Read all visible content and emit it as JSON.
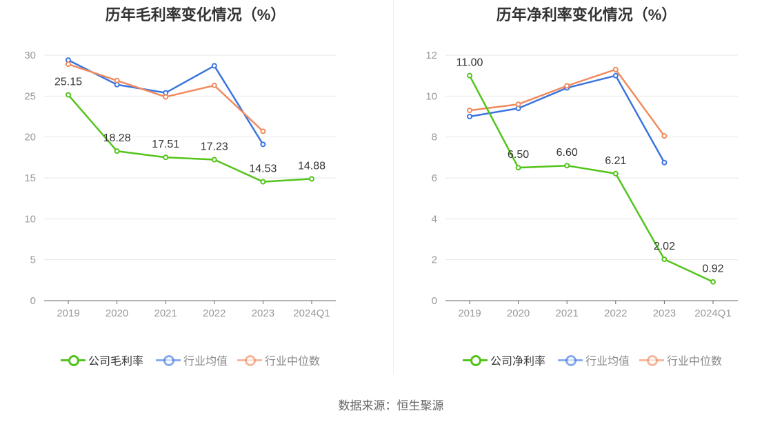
{
  "source": "数据来源：恒生聚源",
  "chart_data": [
    {
      "type": "line",
      "title": "历年毛利率变化情况（%）",
      "categories": [
        "2019",
        "2020",
        "2021",
        "2022",
        "2023",
        "2024Q1"
      ],
      "ylim": [
        0,
        30
      ],
      "yticks": [
        0,
        5,
        10,
        15,
        20,
        25,
        30
      ],
      "grid": true,
      "legend_position": "bottom",
      "series": [
        {
          "name": "公司毛利率",
          "color": "#52c41a",
          "values": [
            25.15,
            18.28,
            17.51,
            17.23,
            14.53,
            14.88
          ],
          "labels": [
            "25.15",
            "18.28",
            "17.51",
            "17.23",
            "14.53",
            "14.88"
          ]
        },
        {
          "name": "行业均值",
          "color": "#3b74e0",
          "values": [
            29.4,
            26.4,
            25.4,
            28.7,
            19.1,
            null
          ]
        },
        {
          "name": "行业中位数",
          "color": "#f08a5d",
          "values": [
            28.9,
            26.9,
            24.9,
            26.3,
            20.7,
            null
          ]
        }
      ]
    },
    {
      "type": "line",
      "title": "历年净利率变化情况（%）",
      "categories": [
        "2019",
        "2020",
        "2021",
        "2022",
        "2023",
        "2024Q1"
      ],
      "ylim": [
        0,
        12
      ],
      "yticks": [
        0,
        2,
        4,
        6,
        8,
        10,
        12
      ],
      "grid": true,
      "legend_position": "bottom",
      "series": [
        {
          "name": "公司净利率",
          "color": "#52c41a",
          "values": [
            11.0,
            6.5,
            6.6,
            6.21,
            2.02,
            0.92
          ],
          "labels": [
            "11.00",
            "6.50",
            "6.60",
            "6.21",
            "2.02",
            "0.92"
          ]
        },
        {
          "name": "行业均值",
          "color": "#3b74e0",
          "values": [
            9.0,
            9.4,
            10.4,
            11.0,
            6.75,
            null
          ]
        },
        {
          "name": "行业中位数",
          "color": "#f08a5d",
          "values": [
            9.3,
            9.6,
            10.5,
            11.3,
            8.05,
            null
          ]
        }
      ]
    }
  ]
}
